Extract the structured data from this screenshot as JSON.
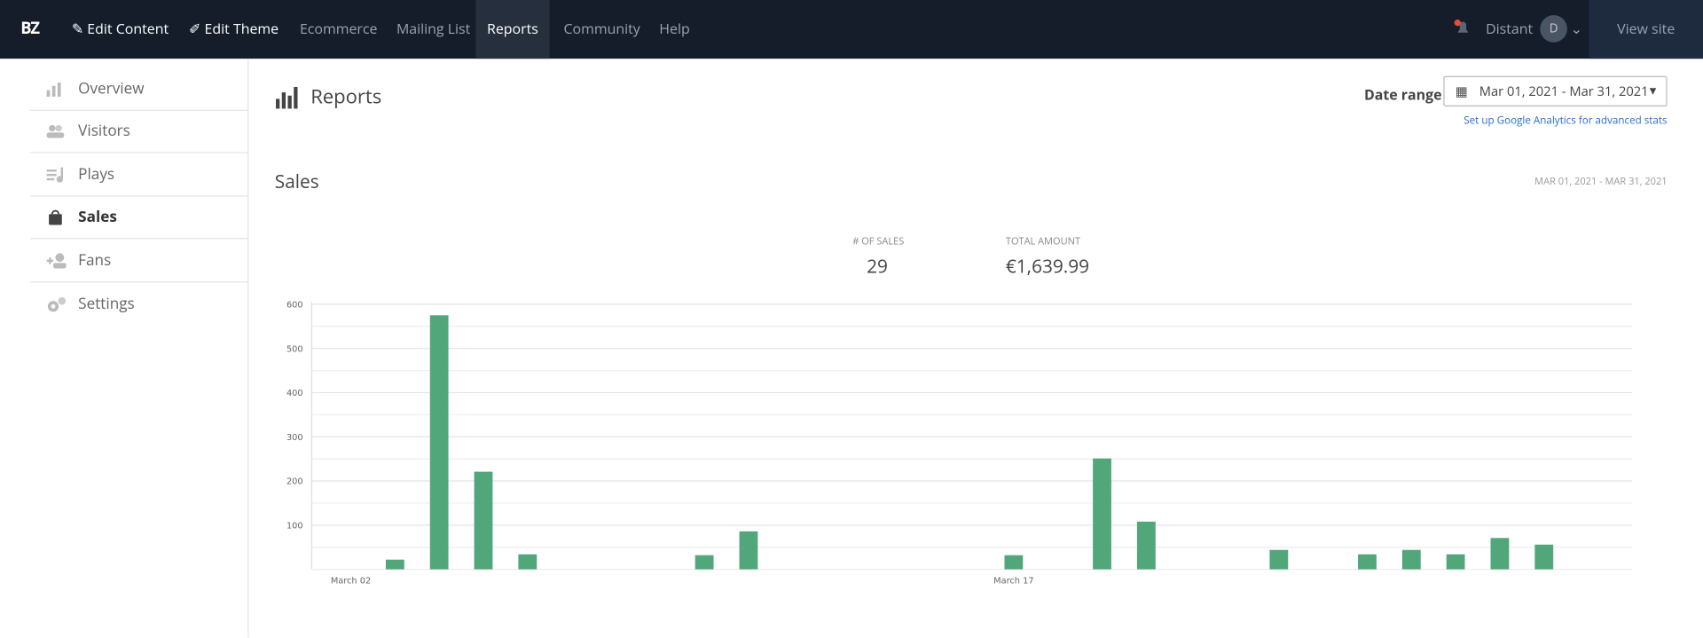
{
  "nav": {
    "logo": "BZ",
    "items": [
      "Edit Content",
      "Edit Theme",
      "Ecommerce",
      "Mailing List",
      "Reports",
      "Community",
      "Help"
    ],
    "user": "Distant",
    "avatar": "D",
    "view_site": "View site"
  },
  "sidebar": [
    "Overview",
    "Visitors",
    "Plays",
    "Sales",
    "Fans",
    "Settings"
  ],
  "header": {
    "title": "Reports",
    "date_range_label": "Date range",
    "date_range": "Mar 01, 2021 - Mar 31, 2021",
    "ga_link": "Set up Google Analytics for advanced stats"
  },
  "section": {
    "title": "Sales",
    "range": "MAR 01, 2021 - MAR 31, 2021",
    "stats": [
      {
        "label": "# OF SALES",
        "value": "29"
      },
      {
        "label": "TOTAL AMOUNT",
        "value": "€1,639.99"
      }
    ]
  },
  "chart_data": {
    "type": "bar",
    "color": "#52a77a",
    "categories": [
      "March 02",
      null,
      null,
      null,
      null,
      null,
      null,
      null,
      null,
      null,
      null,
      null,
      null,
      null,
      null,
      "March 17",
      null,
      null,
      null,
      null,
      null,
      null,
      null,
      null,
      null,
      null,
      null,
      null,
      null,
      null
    ],
    "values": [
      0,
      22,
      575,
      221,
      34,
      0,
      0,
      0,
      32,
      86,
      0,
      0,
      0,
      0,
      0,
      32,
      0,
      251,
      108,
      0,
      0,
      44,
      0,
      34,
      44,
      34,
      71,
      56,
      0,
      0
    ],
    "ylim": [
      0,
      600
    ],
    "yticks": [
      100,
      200,
      300,
      400,
      500,
      600
    ],
    "minor_yticks": [
      0,
      50,
      150,
      250,
      350,
      450,
      550
    ],
    "grid": true
  }
}
